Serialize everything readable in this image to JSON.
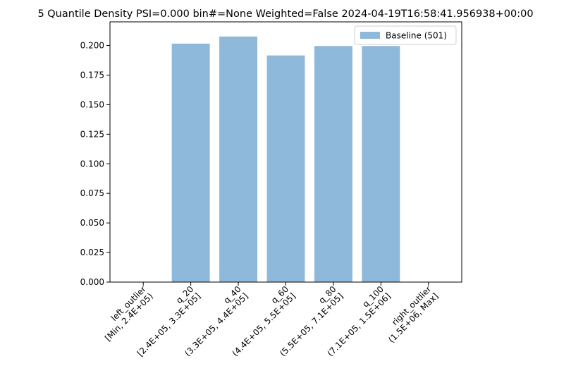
{
  "chart_data": {
    "type": "bar",
    "title": "5 Quantile Density PSI=0.000 bin#=None Weighted=False 2024-04-19T16:58:41.956938+00:00",
    "xlabel": "",
    "ylabel": "",
    "categories": [
      [
        "left_outlier",
        "[Min, 2.4E+05)"
      ],
      [
        "q_20",
        "[2.4E+05, 3.3E+05]"
      ],
      [
        "q_40",
        "(3.3E+05, 4.4E+05]"
      ],
      [
        "q_60",
        "(4.4E+05, 5.5E+05]"
      ],
      [
        "q_80",
        "(5.5E+05, 7.1E+05]"
      ],
      [
        "q_100",
        "(7.1E+05, 1.5E+06]"
      ],
      [
        "right_outlier",
        "(1.5E+06, Max]"
      ]
    ],
    "series": [
      {
        "name": "Baseline (501)",
        "color": "#8fb9da",
        "values": [
          0.0,
          0.2016,
          0.2076,
          0.1916,
          0.1996,
          0.1996,
          0.0
        ]
      }
    ],
    "ylim": [
      0,
      0.22
    ],
    "yticks": [
      "0.000",
      "0.025",
      "0.050",
      "0.075",
      "0.100",
      "0.125",
      "0.150",
      "0.175",
      "0.200"
    ],
    "grid": false,
    "legend": "top-right"
  }
}
